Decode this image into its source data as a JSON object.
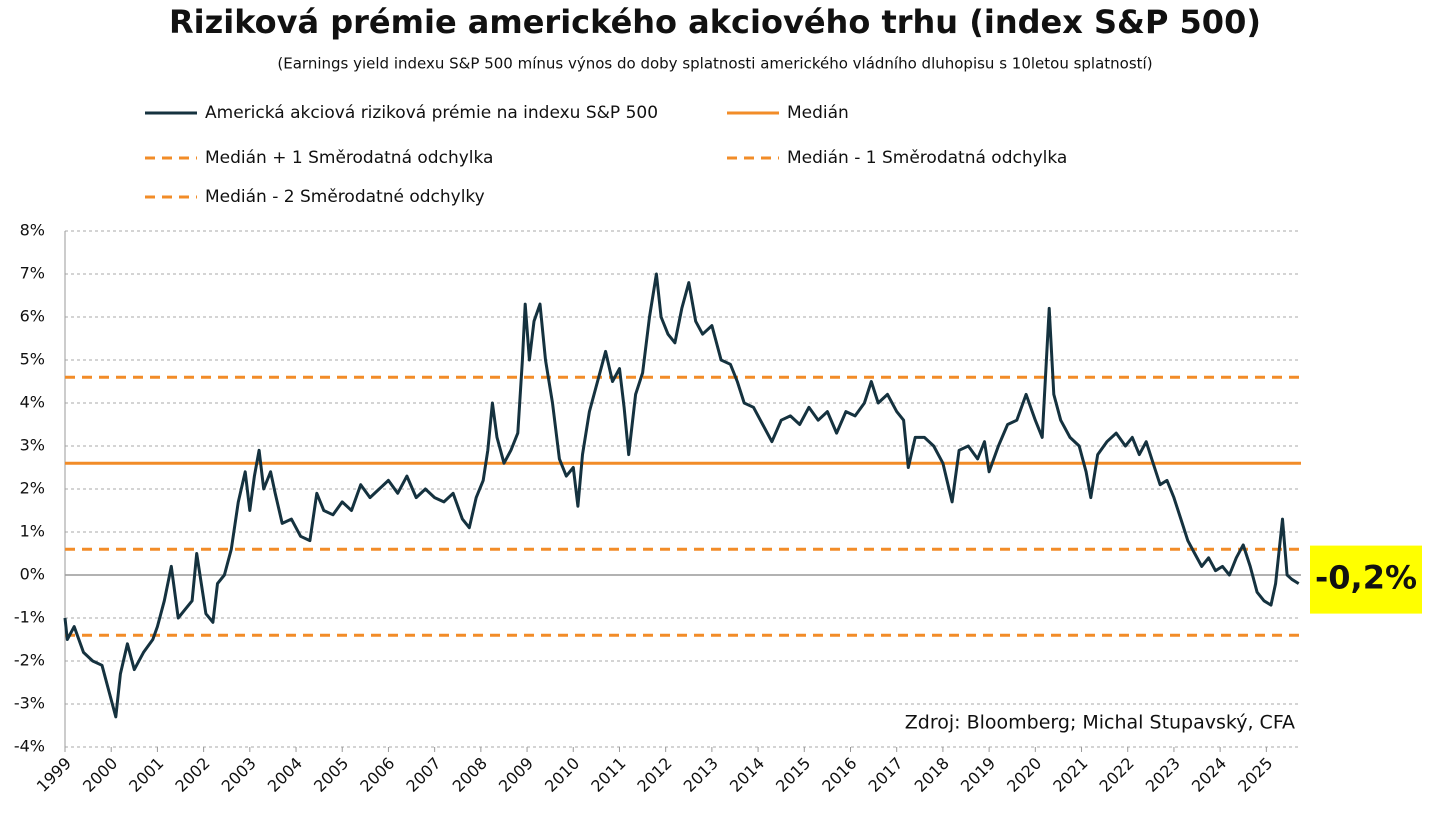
{
  "chart_data": {
    "type": "line",
    "title": "Riziková prémie amerického akciového trhu (index S&P 500)",
    "subtitle": "(Earnings yield indexu S&P 500 mínus výnos do doby splatnosti amerického vládního dluhopisu s 10letou splatností)",
    "source": "Zdroj: Bloomberg; Michal Stupavský,  CFA",
    "annotation": "-0,2%",
    "annotation_color": "#ffff00",
    "grid": true,
    "xlim": [
      1999,
      2025.75
    ],
    "xticks": [
      1999,
      2000,
      2001,
      2002,
      2003,
      2004,
      2005,
      2006,
      2007,
      2008,
      2009,
      2010,
      2011,
      2012,
      2013,
      2014,
      2015,
      2016,
      2017,
      2018,
      2019,
      2020,
      2021,
      2022,
      2023,
      2024,
      2025
    ],
    "ylim": [
      -4,
      8
    ],
    "yticks": [
      {
        "value": 8,
        "label": "8%"
      },
      {
        "value": 7,
        "label": "7%"
      },
      {
        "value": 6,
        "label": "6%"
      },
      {
        "value": 5,
        "label": "5%"
      },
      {
        "value": 4,
        "label": "4%"
      },
      {
        "value": 3,
        "label": "3%"
      },
      {
        "value": 2,
        "label": "2%"
      },
      {
        "value": 1,
        "label": "1%"
      },
      {
        "value": 0,
        "label": "0%"
      },
      {
        "value": -1,
        "label": "-1%"
      },
      {
        "value": -2,
        "label": "-2%"
      },
      {
        "value": -3,
        "label": "-3%"
      },
      {
        "value": -4,
        "label": "-4%"
      }
    ],
    "x": [
      1999.0,
      1999.05,
      1999.2,
      1999.4,
      1999.6,
      1999.8,
      1999.95,
      2000.1,
      2000.2,
      2000.35,
      2000.5,
      2000.7,
      2000.9,
      2001.0,
      2001.15,
      2001.3,
      2001.45,
      2001.6,
      2001.75,
      2001.85,
      2001.95,
      2002.05,
      2002.2,
      2002.3,
      2002.45,
      2002.6,
      2002.75,
      2002.9,
      2003.0,
      2003.1,
      2003.2,
      2003.3,
      2003.45,
      2003.55,
      2003.7,
      2003.9,
      2004.1,
      2004.3,
      2004.45,
      2004.6,
      2004.8,
      2005.0,
      2005.2,
      2005.4,
      2005.6,
      2005.8,
      2006.0,
      2006.2,
      2006.4,
      2006.6,
      2006.8,
      2007.0,
      2007.2,
      2007.4,
      2007.6,
      2007.75,
      2007.9,
      2008.05,
      2008.15,
      2008.25,
      2008.35,
      2008.5,
      2008.65,
      2008.8,
      2008.9,
      2008.96,
      2009.05,
      2009.15,
      2009.28,
      2009.4,
      2009.55,
      2009.7,
      2009.85,
      2010.0,
      2010.1,
      2010.2,
      2010.35,
      2010.55,
      2010.7,
      2010.85,
      2011.0,
      2011.1,
      2011.2,
      2011.35,
      2011.5,
      2011.65,
      2011.8,
      2011.9,
      2012.05,
      2012.2,
      2012.35,
      2012.5,
      2012.65,
      2012.8,
      2013.0,
      2013.2,
      2013.4,
      2013.55,
      2013.7,
      2013.9,
      2014.1,
      2014.3,
      2014.5,
      2014.7,
      2014.9,
      2015.1,
      2015.3,
      2015.5,
      2015.7,
      2015.9,
      2016.1,
      2016.3,
      2016.45,
      2016.6,
      2016.8,
      2017.0,
      2017.15,
      2017.25,
      2017.4,
      2017.6,
      2017.8,
      2018.0,
      2018.2,
      2018.35,
      2018.55,
      2018.75,
      2018.9,
      2019.0,
      2019.2,
      2019.4,
      2019.6,
      2019.8,
      2020.0,
      2020.15,
      2020.3,
      2020.4,
      2020.55,
      2020.75,
      2020.95,
      2021.1,
      2021.2,
      2021.35,
      2021.55,
      2021.75,
      2021.95,
      2022.1,
      2022.25,
      2022.4,
      2022.55,
      2022.7,
      2022.85,
      2023.0,
      2023.15,
      2023.3,
      2023.45,
      2023.6,
      2023.75,
      2023.9,
      2024.05,
      2024.2,
      2024.35,
      2024.5,
      2024.65,
      2024.8,
      2024.95,
      2025.1,
      2025.2,
      2025.35,
      2025.45,
      2025.55,
      2025.7
    ],
    "series": [
      {
        "name": "Americká akciová riziková prémie na indexu S&P 500",
        "color": "#15323f",
        "values": [
          -1.0,
          -1.5,
          -1.2,
          -1.8,
          -2.0,
          -2.1,
          -2.7,
          -3.3,
          -2.3,
          -1.6,
          -2.2,
          -1.8,
          -1.5,
          -1.2,
          -0.6,
          0.2,
          -1.0,
          -0.8,
          -0.6,
          0.5,
          -0.2,
          -0.9,
          -1.1,
          -0.2,
          0.0,
          0.6,
          1.7,
          2.4,
          1.5,
          2.3,
          2.9,
          2.0,
          2.4,
          1.9,
          1.2,
          1.3,
          0.9,
          0.8,
          1.9,
          1.5,
          1.4,
          1.7,
          1.5,
          2.1,
          1.8,
          2.0,
          2.2,
          1.9,
          2.3,
          1.8,
          2.0,
          1.8,
          1.7,
          1.9,
          1.3,
          1.1,
          1.8,
          2.2,
          2.9,
          4.0,
          3.2,
          2.6,
          2.9,
          3.3,
          5.0,
          6.3,
          5.0,
          5.9,
          6.3,
          5.0,
          4.0,
          2.7,
          2.3,
          2.5,
          1.6,
          2.8,
          3.8,
          4.6,
          5.2,
          4.5,
          4.8,
          3.9,
          2.8,
          4.2,
          4.7,
          6.0,
          7.0,
          6.0,
          5.6,
          5.4,
          6.2,
          6.8,
          5.9,
          5.6,
          5.8,
          5.0,
          4.9,
          4.5,
          4.0,
          3.9,
          3.5,
          3.1,
          3.6,
          3.7,
          3.5,
          3.9,
          3.6,
          3.8,
          3.3,
          3.8,
          3.7,
          4.0,
          4.5,
          4.0,
          4.2,
          3.8,
          3.6,
          2.5,
          3.2,
          3.2,
          3.0,
          2.6,
          1.7,
          2.9,
          3.0,
          2.7,
          3.1,
          2.4,
          3.0,
          3.5,
          3.6,
          4.2,
          3.6,
          3.2,
          6.2,
          4.2,
          3.6,
          3.2,
          3.0,
          2.4,
          1.8,
          2.8,
          3.1,
          3.3,
          3.0,
          3.2,
          2.8,
          3.1,
          2.6,
          2.1,
          2.2,
          1.8,
          1.3,
          0.8,
          0.5,
          0.2,
          0.4,
          0.1,
          0.2,
          0.0,
          0.4,
          0.7,
          0.2,
          -0.4,
          -0.6,
          -0.7,
          -0.2,
          1.3,
          0.0,
          -0.1,
          -0.2
        ]
      }
    ],
    "reference_lines": [
      {
        "name": "Medián",
        "color": "#f28c28",
        "value": 2.6,
        "dashed": false
      },
      {
        "name": "Medián + 1 Směrodatná odchylka",
        "color": "#f28c28",
        "value": 4.6,
        "dashed": true
      },
      {
        "name": "Medián - 1 Směrodatná odchylka",
        "color": "#f28c28",
        "value": 0.6,
        "dashed": true
      },
      {
        "name": "Medián - 2 Směrodatné odchylky",
        "color": "#f28c28",
        "value": -1.4,
        "dashed": true
      }
    ]
  }
}
